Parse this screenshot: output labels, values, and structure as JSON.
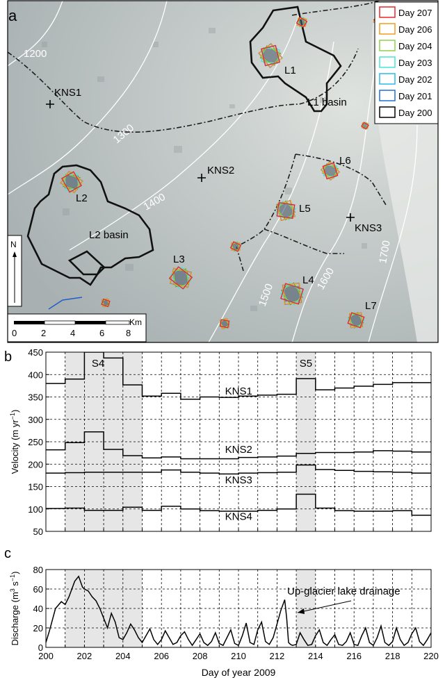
{
  "panel_a": {
    "letter": "a",
    "legend": [
      {
        "label": "Day 207",
        "color": "#e8262a"
      },
      {
        "label": "Day 206",
        "color": "#f39c1f"
      },
      {
        "label": "Day 204",
        "color": "#8fd14f"
      },
      {
        "label": "Day 203",
        "color": "#46e6d6"
      },
      {
        "label": "Day 202",
        "color": "#2ab8ef"
      },
      {
        "label": "Day 201",
        "color": "#1f6fd6"
      },
      {
        "label": "Day 200",
        "color": "#000000"
      }
    ],
    "contours": [
      "1200",
      "1300",
      "1400",
      "1500",
      "1600",
      "1700"
    ],
    "stations": [
      "KNS1",
      "KNS2",
      "KNS3"
    ],
    "lakes": [
      "L1",
      "L2",
      "L3",
      "L4",
      "L5",
      "L6",
      "L7"
    ],
    "basins": [
      "L1 basin",
      "L2 basin"
    ],
    "north": "N",
    "scalebar": {
      "unit": "Km",
      "ticks": [
        "0",
        "2",
        "4",
        "6",
        "8"
      ]
    }
  },
  "chart_data": [
    {
      "type": "line",
      "panel": "b",
      "ylabel": "Velocity (m yr",
      "ylabel_sup": "−1",
      "ylabel_close": ")",
      "xlim": [
        200,
        220
      ],
      "ylim": [
        50,
        450
      ],
      "yticks": [
        50,
        100,
        150,
        200,
        250,
        300,
        350,
        400,
        450
      ],
      "grid": true,
      "shaded_periods": [
        {
          "label": "S4",
          "from": 201,
          "to": 205
        },
        {
          "label": "S5",
          "from": 213,
          "to": 214
        }
      ],
      "series": [
        {
          "name": "KNS1",
          "label_x": 209.3,
          "label_y": 363,
          "x": [
            200,
            201,
            202,
            203,
            204,
            205,
            206,
            207,
            208,
            209,
            210,
            211,
            212,
            213,
            214,
            215,
            216,
            217,
            218,
            219,
            220
          ],
          "y": [
            380,
            390,
            450,
            437,
            377,
            352,
            358,
            345,
            350,
            349,
            352,
            354,
            356,
            391,
            366,
            370,
            374,
            378,
            382,
            382,
            380
          ]
        },
        {
          "name": "KNS2",
          "label_x": 209.3,
          "label_y": 233,
          "x": [
            200,
            201,
            202,
            203,
            204,
            205,
            206,
            207,
            208,
            209,
            210,
            211,
            212,
            213,
            214,
            215,
            216,
            217,
            218,
            219,
            220
          ],
          "y": [
            232,
            248,
            272,
            233,
            219,
            214,
            216,
            212,
            212,
            212,
            215,
            216,
            218,
            224,
            226,
            226,
            227,
            230,
            229,
            227,
            226
          ]
        },
        {
          "name": "KNS3",
          "label_x": 209.3,
          "label_y": 165,
          "x": [
            200,
            201,
            202,
            203,
            204,
            205,
            206,
            207,
            208,
            209,
            210,
            211,
            212,
            213,
            214,
            215,
            216,
            217,
            218,
            219,
            220
          ],
          "y": [
            180,
            181,
            182,
            182,
            182,
            182,
            187,
            182,
            180,
            178,
            180,
            181,
            182,
            198,
            188,
            186,
            184,
            183,
            182,
            180,
            180
          ]
        },
        {
          "name": "KNS4",
          "label_x": 209.3,
          "label_y": 83,
          "x": [
            200,
            201,
            202,
            203,
            204,
            205,
            206,
            207,
            208,
            209,
            210,
            211,
            212,
            213,
            214,
            215,
            216,
            217,
            218,
            219,
            220
          ],
          "y": [
            101,
            102,
            97,
            97,
            104,
            97,
            106,
            100,
            96,
            95,
            95,
            97,
            100,
            133,
            102,
            96,
            95,
            95,
            96,
            86,
            86
          ]
        }
      ]
    },
    {
      "type": "line",
      "panel": "c",
      "xlabel": "Day of year 2009",
      "ylabel": "Discharge (m",
      "ylabel_sup": "3",
      "ylabel_mid": " s",
      "ylabel_sup2": "−1",
      "ylabel_close": ")",
      "xlim": [
        200,
        220
      ],
      "ylim": [
        0,
        80
      ],
      "xticks": [
        200,
        202,
        204,
        206,
        208,
        210,
        212,
        214,
        216,
        218,
        220
      ],
      "yticks": [
        0,
        20,
        40,
        60,
        80
      ],
      "grid": true,
      "shaded_periods": [
        {
          "from": 201,
          "to": 205
        },
        {
          "from": 213,
          "to": 214
        }
      ],
      "annotation": {
        "text": "Up-glacier lake drainage",
        "x": 212.6,
        "y": 49
      },
      "series": [
        {
          "name": "",
          "x": [
            200,
            200.2,
            200.5,
            200.8,
            201.0,
            201.2,
            201.5,
            201.7,
            201.9,
            202.0,
            202.2,
            202.4,
            202.6,
            202.8,
            203.0,
            203.2,
            203.4,
            203.6,
            203.8,
            204.0,
            204.2,
            204.4,
            204.6,
            204.8,
            205.0,
            205.2,
            205.4,
            205.6,
            205.8,
            206.0,
            206.2,
            206.4,
            206.6,
            206.8,
            207.0,
            207.2,
            207.4,
            207.6,
            207.8,
            208.0,
            208.2,
            208.4,
            208.6,
            208.8,
            209.0,
            209.2,
            209.4,
            209.6,
            209.8,
            210.0,
            210.2,
            210.4,
            210.6,
            210.8,
            211.0,
            211.2,
            211.4,
            211.6,
            211.8,
            212.0,
            212.2,
            212.4,
            212.5,
            212.6,
            212.7,
            212.8,
            213.0,
            213.2,
            213.4,
            213.6,
            213.8,
            214.0,
            214.2,
            214.4,
            214.6,
            214.8,
            215.0,
            215.2,
            215.4,
            215.6,
            215.8,
            216.0,
            216.2,
            216.4,
            216.6,
            216.8,
            217.0,
            217.2,
            217.4,
            217.6,
            217.8,
            218.0,
            218.2,
            218.4,
            218.6,
            218.8,
            219.0,
            219.2,
            219.4,
            219.6,
            219.8,
            220.0
          ],
          "y": [
            5,
            18,
            40,
            47,
            44,
            52,
            68,
            73,
            62,
            60,
            58,
            52,
            48,
            40,
            30,
            20,
            35,
            26,
            10,
            8,
            15,
            24,
            18,
            10,
            5,
            12,
            19,
            8,
            3,
            8,
            17,
            10,
            3,
            5,
            12,
            16,
            8,
            2,
            8,
            14,
            5,
            2,
            6,
            15,
            4,
            2,
            10,
            18,
            4,
            2,
            12,
            25,
            5,
            3,
            18,
            26,
            6,
            3,
            10,
            24,
            38,
            49,
            30,
            5,
            3,
            2,
            3,
            15,
            8,
            2,
            3,
            12,
            18,
            5,
            2,
            8,
            13,
            3,
            2,
            6,
            15,
            3,
            2,
            12,
            20,
            5,
            2,
            10,
            22,
            5,
            2,
            6,
            20,
            8,
            2,
            5,
            14,
            20,
            6,
            2,
            8,
            15
          ]
        }
      ]
    }
  ],
  "panel_labels": {
    "b": "b",
    "c": "c"
  }
}
